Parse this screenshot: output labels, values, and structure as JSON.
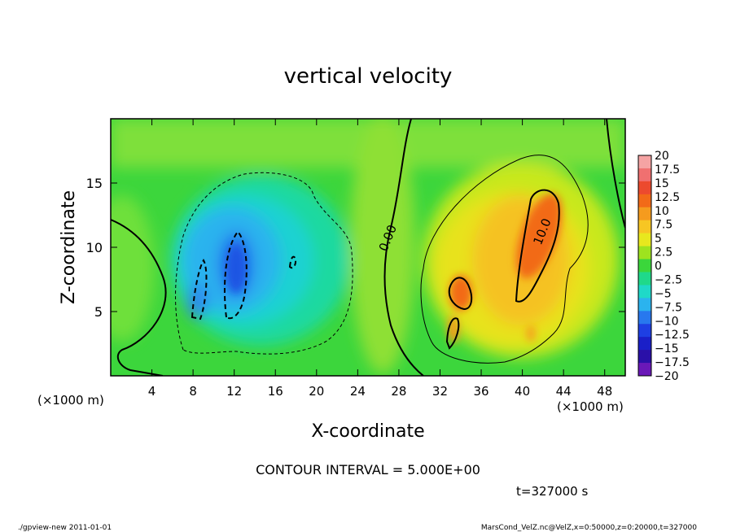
{
  "chart_data": {
    "type": "heatmap",
    "title": "vertical velocity",
    "xlabel": "X-coordinate",
    "ylabel": "Z-coordinate",
    "x_unit_left": "(×1000 m)",
    "x_unit_right": "(×1000 m)",
    "xlim": [
      0,
      50
    ],
    "ylim": [
      0,
      20
    ],
    "x_ticks": [
      4,
      8,
      12,
      16,
      20,
      24,
      28,
      32,
      36,
      40,
      44,
      48
    ],
    "y_ticks": [
      5,
      10,
      15
    ],
    "contour_labels": [
      {
        "text": "0.00",
        "x": 27.3,
        "y": 10.6
      },
      {
        "text": "10.0",
        "x": 42.3,
        "y": 11.1
      }
    ],
    "colorbar": {
      "levels": [
        "20",
        "17.5",
        "15",
        "12.5",
        "10",
        "7.5",
        "5",
        "2.5",
        "0",
        "-2.5",
        "-5",
        "-7.5",
        "-10",
        "-12.5",
        "-15",
        "-17.5",
        "-20"
      ],
      "colors": [
        "#f5a3a3",
        "#f07070",
        "#ec4a2e",
        "#f26a18",
        "#f59b1e",
        "#f7c623",
        "#e8e81e",
        "#9ee31f",
        "#3bd63b",
        "#1fd98a",
        "#1fd9c8",
        "#2bb3ee",
        "#2878ee",
        "#1e3fe3",
        "#1a1fc8",
        "#2a10a8",
        "#6a18b8"
      ]
    },
    "features": [
      {
        "name": "updraft",
        "x": 41.5,
        "z": 11.5,
        "w": 12
      },
      {
        "name": "updraft",
        "x": 33.5,
        "z": 6.8,
        "w": 10
      },
      {
        "name": "updraft",
        "x": 33.3,
        "z": 4.0,
        "w": 6
      },
      {
        "name": "updraft",
        "x": 41.0,
        "z": 3.5,
        "w": 7
      },
      {
        "name": "downdraft",
        "x": 12.0,
        "z": 9.0,
        "w": -12
      },
      {
        "name": "downdraft",
        "x": 8.5,
        "z": 6.0,
        "w": -8
      },
      {
        "name": "downdraft",
        "x": 17.5,
        "z": 9.0,
        "w": -7
      }
    ]
  },
  "contour_interval_text": "CONTOUR INTERVAL = 5.000E+00",
  "time_text": "t=327000 s",
  "footer_left": "./gpview-new  2011-01-01",
  "footer_right": "MarsCond_VelZ.nc@VelZ,x=0:50000,z=0:20000,t=327000"
}
